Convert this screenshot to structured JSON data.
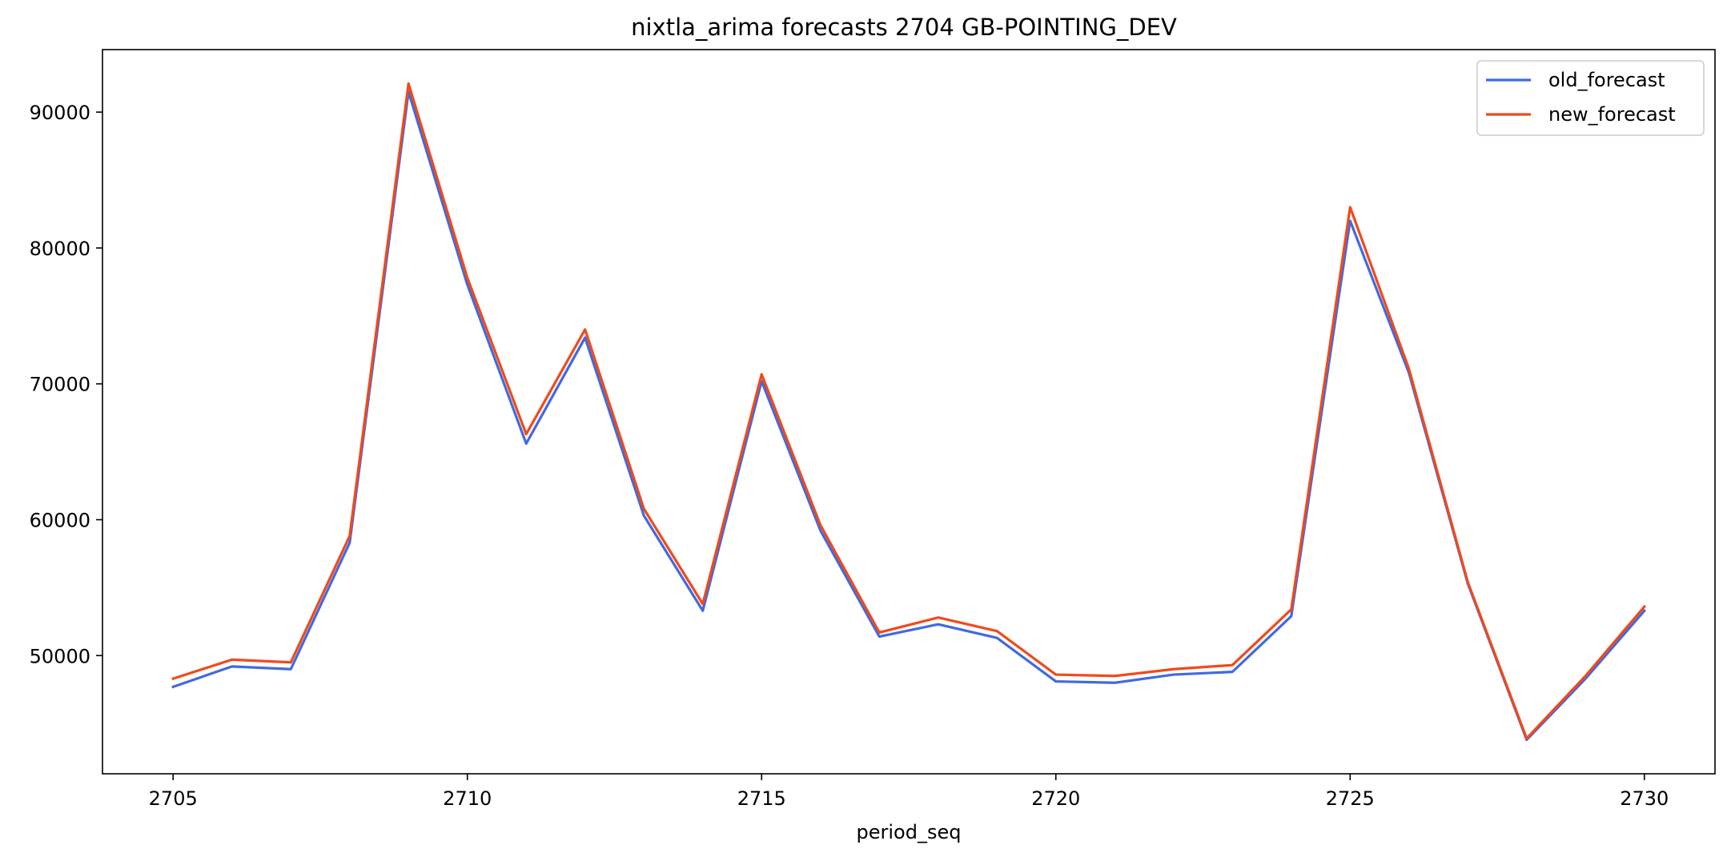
{
  "chart_data": {
    "type": "line",
    "title": "nixtla_arima forecasts 2704 GB-POINTING_DEV",
    "xlabel": "period_seq",
    "ylabel": "",
    "x": [
      2705,
      2706,
      2707,
      2708,
      2709,
      2710,
      2711,
      2712,
      2713,
      2714,
      2715,
      2716,
      2717,
      2718,
      2719,
      2720,
      2721,
      2722,
      2723,
      2724,
      2725,
      2726,
      2727,
      2728,
      2729,
      2730
    ],
    "xlim": [
      2703.8,
      2731.2
    ],
    "ylim": [
      41300,
      94600
    ],
    "xticks": [
      2705,
      2710,
      2715,
      2720,
      2725,
      2730
    ],
    "yticks": [
      50000,
      60000,
      70000,
      80000,
      90000
    ],
    "grid": false,
    "legend_position": "top-right",
    "series": [
      {
        "name": "old_forecast",
        "color": "#4169e1",
        "values": [
          47700,
          49200,
          49000,
          58300,
          91500,
          77300,
          65600,
          73400,
          60300,
          53300,
          70200,
          59200,
          51400,
          52300,
          51300,
          48100,
          48000,
          48600,
          48800,
          52900,
          82000,
          70800,
          55300,
          43800,
          48300,
          53300
        ]
      },
      {
        "name": "new_forecast",
        "color": "#f04a1a",
        "values": [
          48300,
          49700,
          49500,
          58800,
          92100,
          77800,
          66300,
          74000,
          60800,
          53800,
          70700,
          59600,
          51700,
          52800,
          51800,
          48600,
          48500,
          49000,
          49300,
          53400,
          83000,
          71100,
          55400,
          43900,
          48500,
          53600
        ]
      }
    ]
  }
}
